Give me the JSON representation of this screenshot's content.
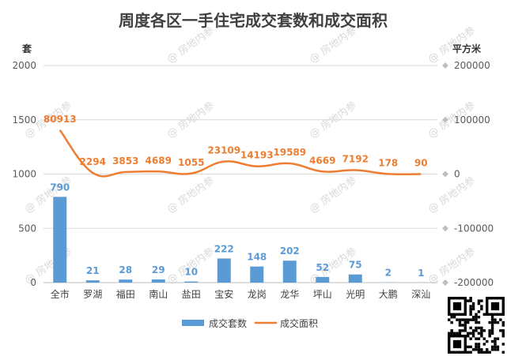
{
  "chart_data": {
    "type": "bar+line",
    "title": "周度各区一手住宅成交套数和成交面积",
    "left_axis_unit": "套",
    "right_axis_unit": "平方米",
    "categories": [
      "全市",
      "罗湖",
      "福田",
      "南山",
      "盐田",
      "宝安",
      "龙岗",
      "龙华",
      "坪山",
      "光明",
      "大鹏",
      "深汕"
    ],
    "series": [
      {
        "name": "成交套数",
        "type": "bar",
        "axis": "left",
        "color": "#5b9bd5",
        "values": [
          790,
          21,
          28,
          29,
          10,
          222,
          148,
          202,
          52,
          75,
          2,
          1
        ]
      },
      {
        "name": "成交面积",
        "type": "line",
        "axis": "right",
        "color": "#ed7d31",
        "values": [
          80913,
          2294,
          3853,
          4689,
          1055,
          23109,
          14193,
          19589,
          4669,
          7192,
          178,
          90
        ]
      }
    ],
    "left_ylim": [
      0,
      2000
    ],
    "left_ticks": [
      0,
      500,
      1000,
      1500,
      2000
    ],
    "right_ylim": [
      -200000,
      200000
    ],
    "right_ticks": [
      -200000,
      -100000,
      0,
      100000,
      200000
    ],
    "grid": true,
    "legend_position": "bottom"
  },
  "watermark": {
    "text": "@ 房地内参"
  },
  "qr_code": {
    "present": true
  }
}
